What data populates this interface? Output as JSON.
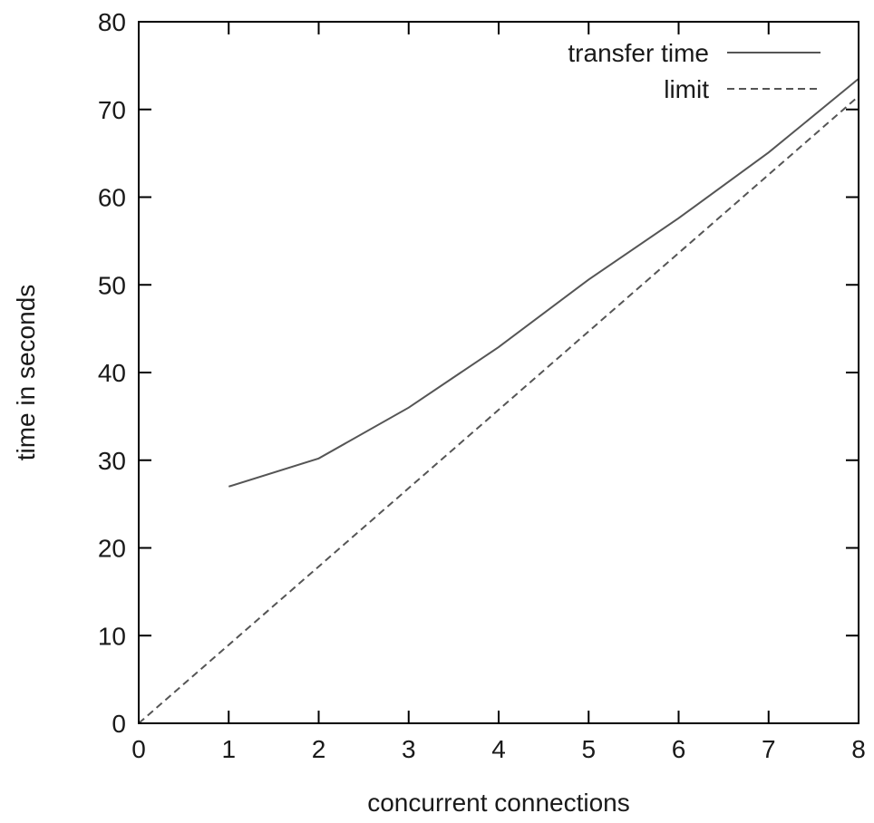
{
  "chart_data": {
    "type": "line",
    "title": "",
    "xlabel": "concurrent connections",
    "ylabel": "time in seconds",
    "xlim": [
      0,
      8
    ],
    "ylim": [
      0,
      80
    ],
    "xticks": [
      0,
      1,
      2,
      3,
      4,
      5,
      6,
      7,
      8
    ],
    "yticks": [
      0,
      10,
      20,
      30,
      40,
      50,
      60,
      70,
      80
    ],
    "grid": false,
    "legend_position": "top-right",
    "series": [
      {
        "name": "transfer time",
        "style": "solid",
        "color": "#555555",
        "x": [
          1,
          2,
          3,
          4,
          5,
          6,
          7,
          8
        ],
        "y": [
          27,
          30.2,
          36,
          42.9,
          50.6,
          57.6,
          65.1,
          73.5
        ]
      },
      {
        "name": "limit",
        "style": "dashed",
        "color": "#555555",
        "x": [
          0,
          8
        ],
        "y": [
          0,
          71.5
        ]
      }
    ]
  }
}
